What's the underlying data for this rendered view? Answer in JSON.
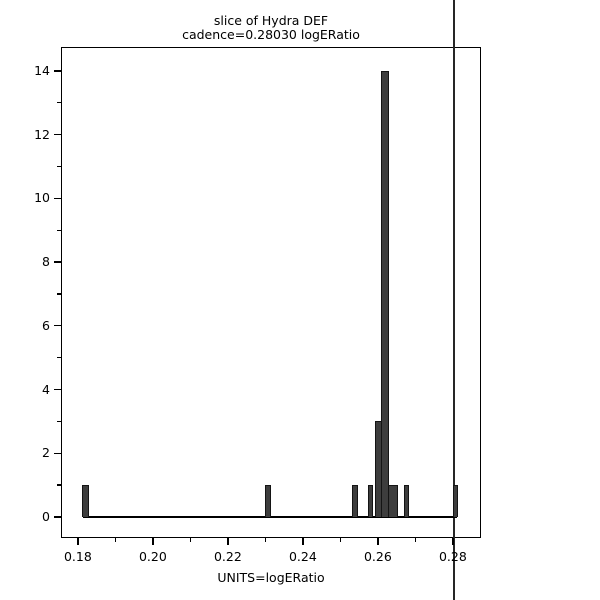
{
  "chart_data": {
    "type": "bar",
    "subtype": "histogram",
    "title": "slice of Hydra DEF",
    "subtitle": "cadence=0.28030 logERatio",
    "xlabel": "UNITS=logERatio",
    "ylabel": "",
    "xlim": [
      0.1755,
      0.2875
    ],
    "ylim": [
      -0.66,
      14.75
    ],
    "grid": false,
    "legend": null,
    "x_major_ticks": [
      {
        "v": 0.18,
        "label": "0.18"
      },
      {
        "v": 0.2,
        "label": "0.20"
      },
      {
        "v": 0.22,
        "label": "0.22"
      },
      {
        "v": 0.24,
        "label": "0.24"
      },
      {
        "v": 0.26,
        "label": "0.26"
      },
      {
        "v": 0.28,
        "label": "0.28"
      }
    ],
    "x_minor_ticks": [
      0.19,
      0.21,
      0.23,
      0.25,
      0.27
    ],
    "y_major_ticks": [
      {
        "v": 0,
        "label": "0"
      },
      {
        "v": 2,
        "label": "2"
      },
      {
        "v": 4,
        "label": "4"
      },
      {
        "v": 6,
        "label": "6"
      },
      {
        "v": 8,
        "label": "8"
      },
      {
        "v": 10,
        "label": "10"
      },
      {
        "v": 12,
        "label": "12"
      },
      {
        "v": 14,
        "label": "14"
      }
    ],
    "y_minor_ticks": [
      1,
      3,
      5,
      7,
      9,
      11,
      13
    ],
    "bins": [
      {
        "x0": 0.1814,
        "x1": 0.1828,
        "count": 1
      },
      {
        "x0": 0.2301,
        "x1": 0.2314,
        "count": 1
      },
      {
        "x0": 0.2534,
        "x1": 0.2546,
        "count": 1
      },
      {
        "x0": 0.2575,
        "x1": 0.2586,
        "count": 1
      },
      {
        "x0": 0.2593,
        "x1": 0.2611,
        "count": 3
      },
      {
        "x0": 0.2611,
        "x1": 0.2627,
        "count": 14
      },
      {
        "x0": 0.263,
        "x1": 0.2653,
        "count": 1
      },
      {
        "x0": 0.2671,
        "x1": 0.2681,
        "count": 1
      },
      {
        "x0": 0.2801,
        "x1": 0.2811,
        "count": 1
      }
    ],
    "marker_x": 0.2803,
    "colors": {
      "background": "#ffffff",
      "text": "#000000",
      "axis": "#000000",
      "bar_fill": "#3d3d3d",
      "bar_stroke": "#141414",
      "marker": "#262626"
    }
  }
}
